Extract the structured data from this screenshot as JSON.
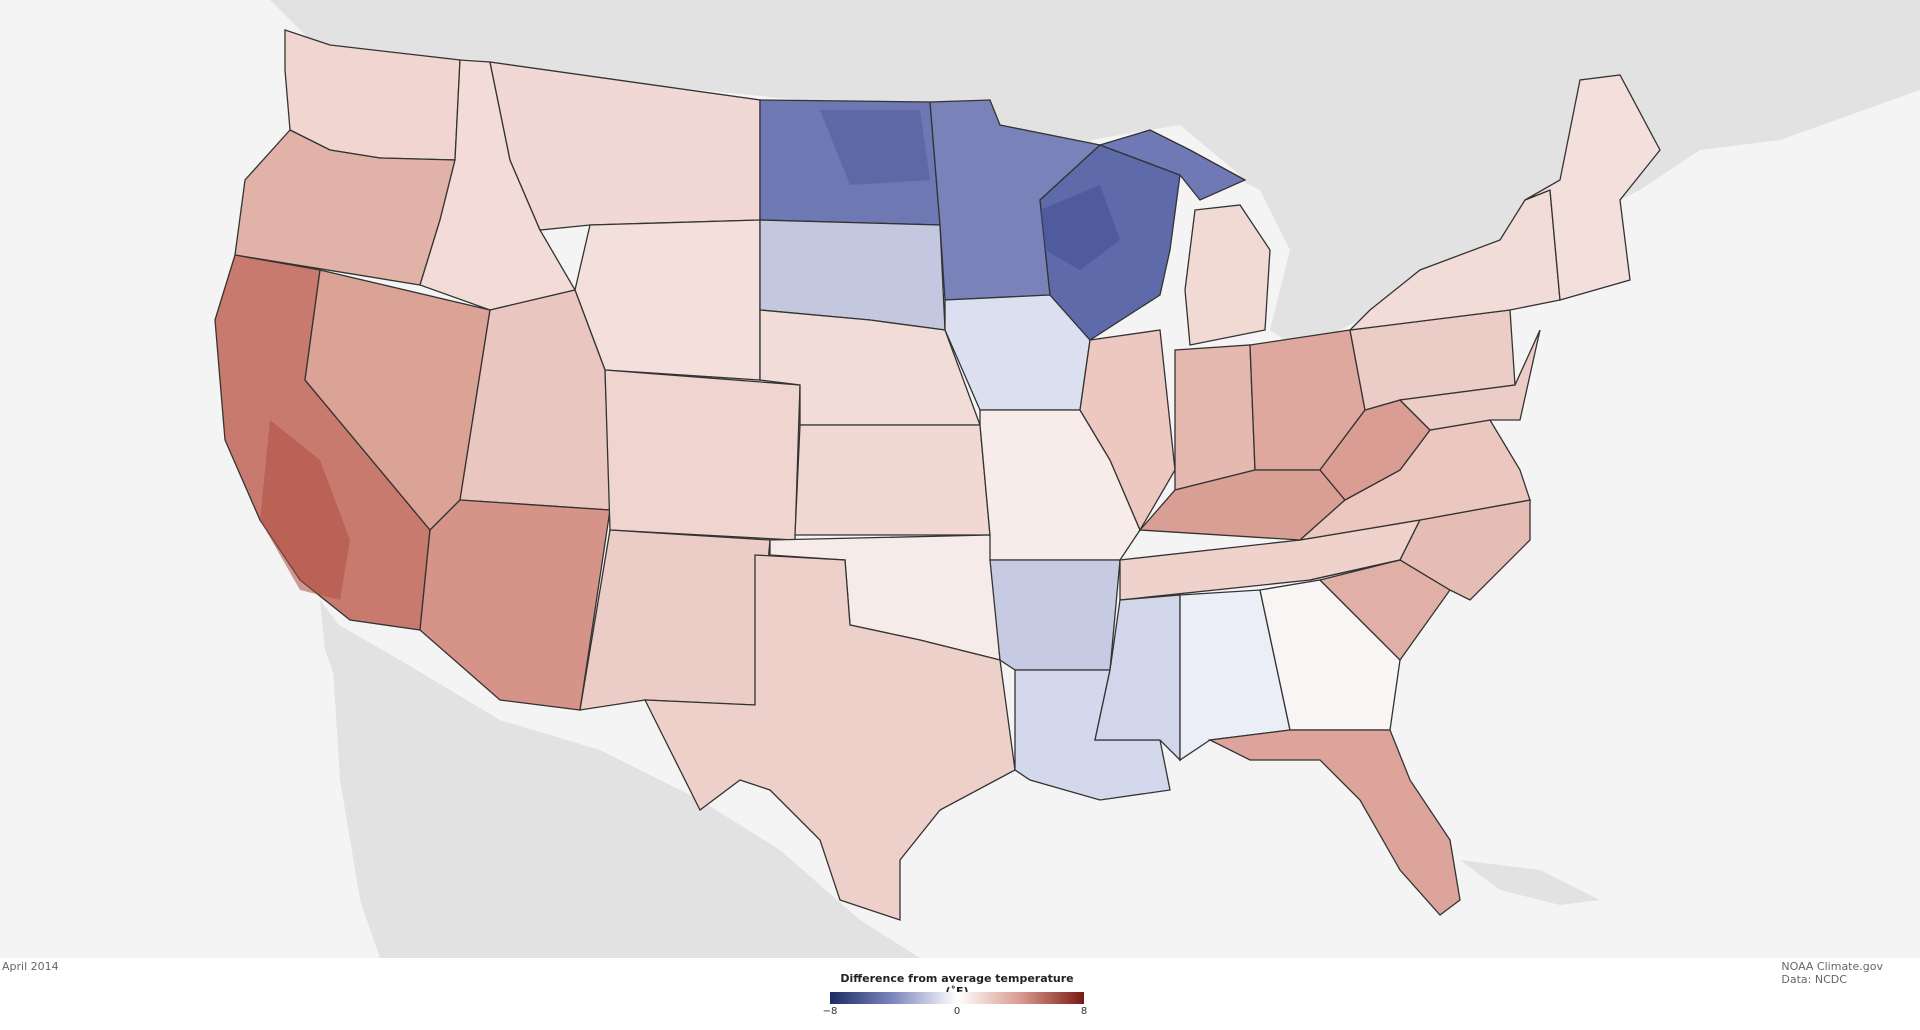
{
  "map": {
    "date_label": "April 2014",
    "credits": {
      "source_line": "NOAA Climate.gov",
      "data_line": "Data: NCDC"
    },
    "legend": {
      "title": "Difference from average temperature (˚F)",
      "tick_min": "−8",
      "tick_mid": "0",
      "tick_max": "8",
      "scale_min": -8,
      "scale_max": 8,
      "colors": {
        "cold_extreme": "#1e2a63",
        "cold_mid": "#7d88bf",
        "neutral": "#ffffff",
        "warm_mid": "#d99a90",
        "warm_extreme": "#7a1a12"
      }
    },
    "background_colors": {
      "ocean": "#f4f4f4",
      "land": "#e2e2e2",
      "state_borders": "#333333"
    },
    "regional_anomalies_f": [
      {
        "region": "Washington",
        "value": 1.0
      },
      {
        "region": "Oregon",
        "value": 2.5
      },
      {
        "region": "California",
        "value": 5.5
      },
      {
        "region": "Nevada",
        "value": 3.5
      },
      {
        "region": "Idaho",
        "value": 0.8
      },
      {
        "region": "Montana",
        "value": 1.0
      },
      {
        "region": "Wyoming",
        "value": 0.8
      },
      {
        "region": "Utah",
        "value": 2.0
      },
      {
        "region": "Arizona",
        "value": 3.5
      },
      {
        "region": "Colorado",
        "value": 1.5
      },
      {
        "region": "New Mexico",
        "value": 1.5
      },
      {
        "region": "North Dakota",
        "value": -6.0
      },
      {
        "region": "South Dakota",
        "value": -1.5
      },
      {
        "region": "Nebraska",
        "value": 1.0
      },
      {
        "region": "Kansas",
        "value": 1.0
      },
      {
        "region": "Oklahoma",
        "value": 0.5
      },
      {
        "region": "Texas",
        "value": 1.5
      },
      {
        "region": "Minnesota",
        "value": -5.5
      },
      {
        "region": "Iowa",
        "value": -1.0
      },
      {
        "region": "Missouri",
        "value": 0.5
      },
      {
        "region": "Arkansas",
        "value": -1.5
      },
      {
        "region": "Louisiana",
        "value": -1.5
      },
      {
        "region": "Wisconsin",
        "value": -6.5
      },
      {
        "region": "Illinois",
        "value": 1.5
      },
      {
        "region": "Michigan",
        "value": 1.0
      },
      {
        "region": "Indiana",
        "value": 2.0
      },
      {
        "region": "Ohio",
        "value": 2.5
      },
      {
        "region": "Kentucky",
        "value": 3.0
      },
      {
        "region": "Tennessee",
        "value": 1.5
      },
      {
        "region": "Mississippi",
        "value": -1.5
      },
      {
        "region": "Alabama",
        "value": -0.5
      },
      {
        "region": "Georgia",
        "value": 0.0
      },
      {
        "region": "Florida",
        "value": 2.5
      },
      {
        "region": "South Carolina",
        "value": 2.0
      },
      {
        "region": "North Carolina",
        "value": 1.8
      },
      {
        "region": "Virginia",
        "value": 1.8
      },
      {
        "region": "West Virginia",
        "value": 3.0
      },
      {
        "region": "Pennsylvania",
        "value": 1.2
      },
      {
        "region": "New York",
        "value": 1.0
      },
      {
        "region": "New England",
        "value": 0.8
      }
    ]
  }
}
